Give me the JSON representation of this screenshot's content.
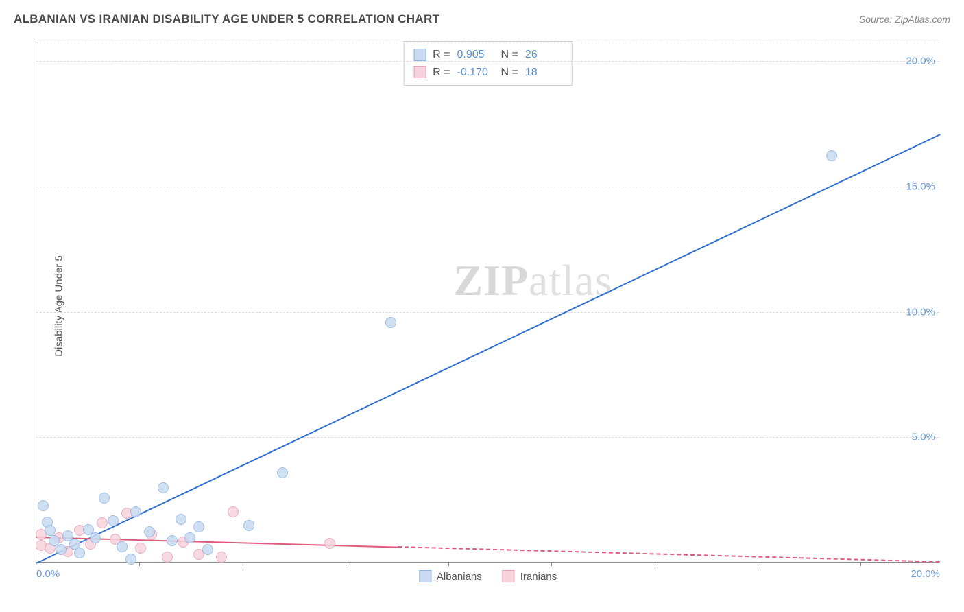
{
  "header": {
    "title": "ALBANIAN VS IRANIAN DISABILITY AGE UNDER 5 CORRELATION CHART",
    "source_prefix": "Source: ",
    "source_name": "ZipAtlas.com"
  },
  "watermark": {
    "zip": "ZIP",
    "atlas": "atlas"
  },
  "chart": {
    "type": "scatter",
    "ylabel": "Disability Age Under 5",
    "xlim": [
      0,
      20
    ],
    "ylim": [
      0,
      20.8
    ],
    "x_ticks": [
      {
        "v": 0.0,
        "label": "0.0%"
      },
      {
        "v": 20.0,
        "label": "20.0%"
      }
    ],
    "x_tick_marks": [
      2.28,
      4.56,
      6.84,
      9.12,
      11.4,
      13.68,
      15.96,
      18.24
    ],
    "y_ticks": [
      {
        "v": 5.0,
        "label": "5.0%"
      },
      {
        "v": 10.0,
        "label": "10.0%"
      },
      {
        "v": 15.0,
        "label": "15.0%"
      },
      {
        "v": 20.0,
        "label": "20.0%"
      }
    ],
    "background_color": "#ffffff",
    "grid_color": "#dddddd",
    "axis_color": "#888888",
    "tick_label_color": "#6b9bd8",
    "watermark_color": "#e0e0e0",
    "series": {
      "albanians": {
        "label": "Albanians",
        "fill": "#c8dbf2",
        "stroke": "#8fb3e0",
        "line_color": "#2f6fd0",
        "marker_radius": 8,
        "stats": {
          "R": "0.905",
          "N": "26"
        },
        "trend": {
          "x1": 0.0,
          "y1": 0.0,
          "x2": 20.0,
          "y2": 17.1,
          "dash": false
        },
        "points": [
          {
            "x": 0.15,
            "y": 2.25
          },
          {
            "x": 0.25,
            "y": 1.6
          },
          {
            "x": 0.4,
            "y": 0.85
          },
          {
            "x": 0.55,
            "y": 0.5
          },
          {
            "x": 0.7,
            "y": 1.05
          },
          {
            "x": 0.85,
            "y": 0.7
          },
          {
            "x": 0.95,
            "y": 0.35
          },
          {
            "x": 1.15,
            "y": 1.3
          },
          {
            "x": 1.3,
            "y": 0.95
          },
          {
            "x": 1.5,
            "y": 2.55
          },
          {
            "x": 1.7,
            "y": 1.65
          },
          {
            "x": 1.9,
            "y": 0.6
          },
          {
            "x": 2.1,
            "y": 0.1
          },
          {
            "x": 2.2,
            "y": 2.0
          },
          {
            "x": 2.5,
            "y": 1.2
          },
          {
            "x": 2.8,
            "y": 2.95
          },
          {
            "x": 3.0,
            "y": 0.85
          },
          {
            "x": 3.2,
            "y": 1.7
          },
          {
            "x": 3.4,
            "y": 0.95
          },
          {
            "x": 3.6,
            "y": 1.4
          },
          {
            "x": 3.8,
            "y": 0.5
          },
          {
            "x": 4.7,
            "y": 1.45
          },
          {
            "x": 5.45,
            "y": 3.55
          },
          {
            "x": 7.85,
            "y": 9.55
          },
          {
            "x": 17.6,
            "y": 16.2
          },
          {
            "x": 0.3,
            "y": 1.25
          }
        ]
      },
      "iranians": {
        "label": "Iranians",
        "fill": "#f6d3dc",
        "stroke": "#e7a0b4",
        "line_color": "#e05a7d",
        "marker_radius": 8,
        "stats": {
          "R": "-0.170",
          "N": "18"
        },
        "trend_solid": {
          "x1": 0.0,
          "y1": 1.05,
          "x2": 8.0,
          "y2": 0.65
        },
        "trend_dash": {
          "x1": 8.0,
          "y1": 0.65,
          "x2": 20.0,
          "y2": 0.05
        },
        "points": [
          {
            "x": 0.1,
            "y": 0.65
          },
          {
            "x": 0.1,
            "y": 1.1
          },
          {
            "x": 0.3,
            "y": 0.55
          },
          {
            "x": 0.5,
            "y": 0.95
          },
          {
            "x": 0.7,
            "y": 0.4
          },
          {
            "x": 0.95,
            "y": 1.25
          },
          {
            "x": 1.2,
            "y": 0.7
          },
          {
            "x": 1.45,
            "y": 1.55
          },
          {
            "x": 1.75,
            "y": 0.9
          },
          {
            "x": 2.0,
            "y": 1.95
          },
          {
            "x": 2.3,
            "y": 0.55
          },
          {
            "x": 2.55,
            "y": 1.1
          },
          {
            "x": 2.9,
            "y": 0.2
          },
          {
            "x": 3.25,
            "y": 0.8
          },
          {
            "x": 3.6,
            "y": 0.3
          },
          {
            "x": 4.1,
            "y": 0.2
          },
          {
            "x": 4.35,
            "y": 2.0
          },
          {
            "x": 6.5,
            "y": 0.75
          }
        ]
      }
    },
    "stats_labels": {
      "R": "R =",
      "N": "N ="
    },
    "legend_bottom": [
      "albanians",
      "iranians"
    ]
  }
}
